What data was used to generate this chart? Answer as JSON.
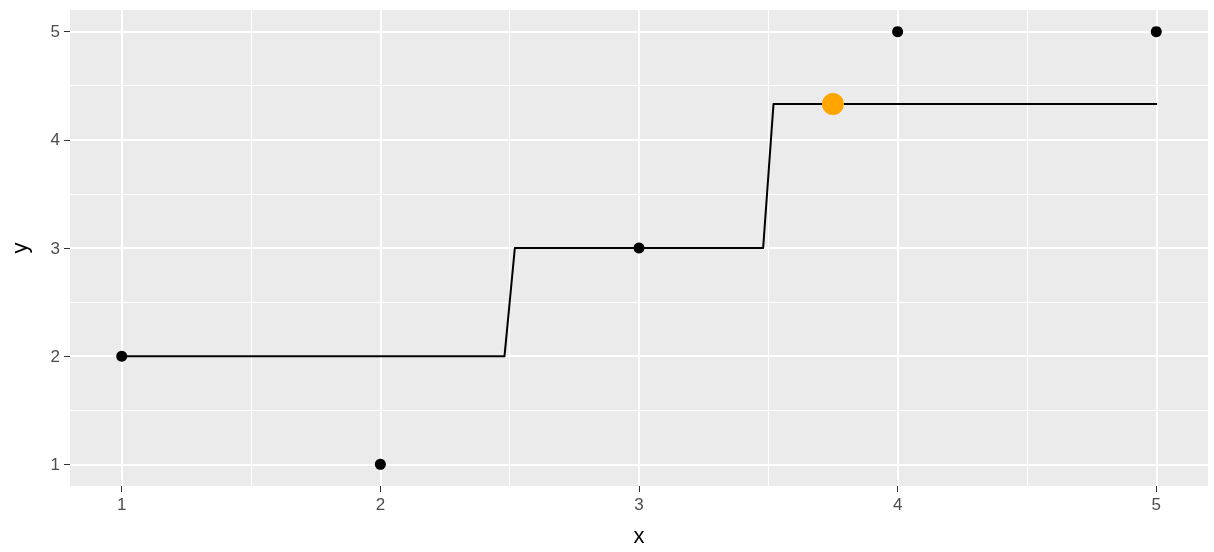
{
  "chart_data": {
    "type": "scatter",
    "xlabel": "x",
    "ylabel": "y",
    "xlim": [
      0.8,
      5.2
    ],
    "xticks": [
      1,
      2,
      3,
      4,
      5
    ],
    "ylim": [
      0.8,
      5.2
    ],
    "yticks": [
      1,
      2,
      3,
      4,
      5
    ],
    "grid": true,
    "series": [
      {
        "color": "#000000",
        "marker": "circle",
        "x": [
          1,
          2,
          3,
          4,
          5
        ],
        "values": [
          2,
          1,
          3,
          5,
          5
        ]
      },
      {
        "type": "line",
        "color": "#000000",
        "marker": "none",
        "line_style": "solid",
        "x": [
          1,
          2.48,
          2.52,
          3.48,
          3.52,
          5
        ],
        "values": [
          2,
          2,
          3,
          3,
          4.33,
          4.33
        ]
      },
      {
        "color": "#ffa500",
        "marker": "circle",
        "x": [
          3.75
        ],
        "values": [
          4.33
        ]
      }
    ]
  }
}
